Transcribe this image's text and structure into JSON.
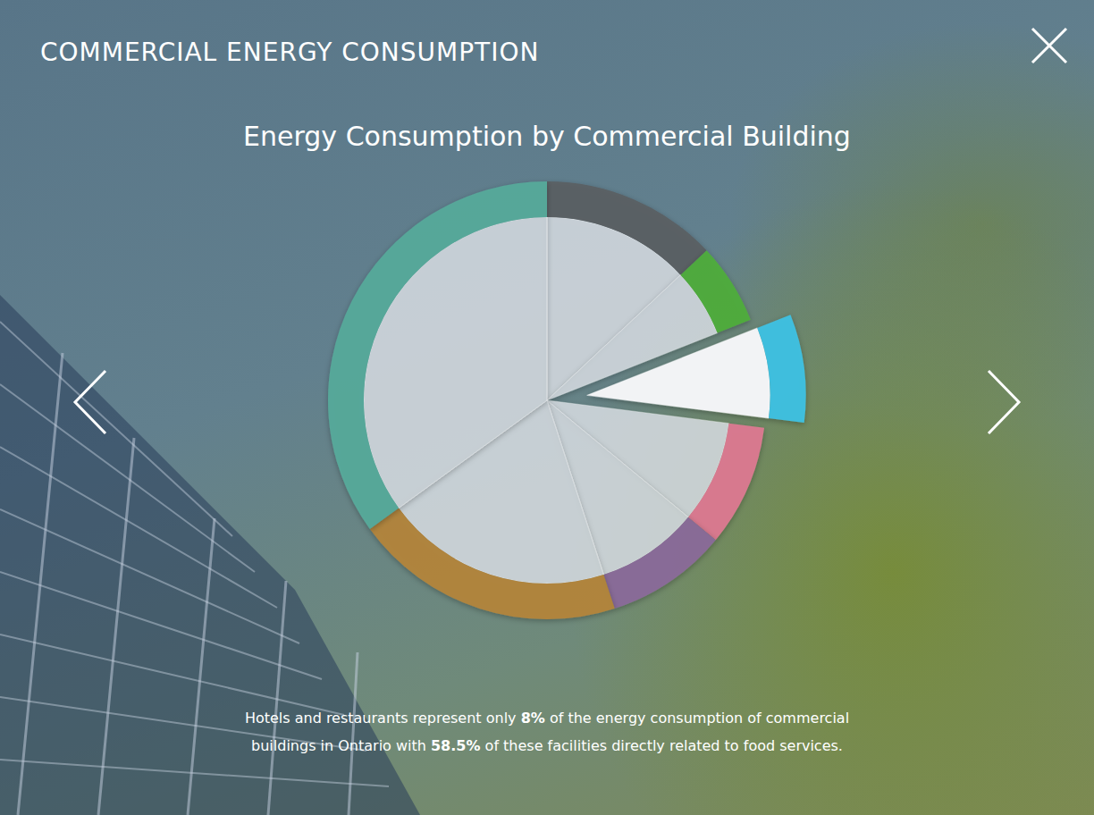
{
  "page": {
    "header": "COMMERCIAL ENERGY CONSUMPTION",
    "caption": [
      [
        "Hotels and restaurants represent only ",
        "8%",
        " of the energy consumption of commercial"
      ],
      [
        "buildings in Ontario with ",
        "58.5%",
        " of these facilities directly related to food services."
      ]
    ]
  },
  "chart_data": {
    "type": "pie",
    "title": "Energy Consumption by Commercial Building",
    "values": [
      13,
      6,
      8,
      9,
      9,
      20,
      35
    ],
    "colors": [
      "#5a5f63",
      "#4fae3a",
      "#3ec3e6",
      "#e07a93",
      "#8b6a9b",
      "#b5843a",
      "#56ab9b"
    ],
    "tick_labels": false
  }
}
